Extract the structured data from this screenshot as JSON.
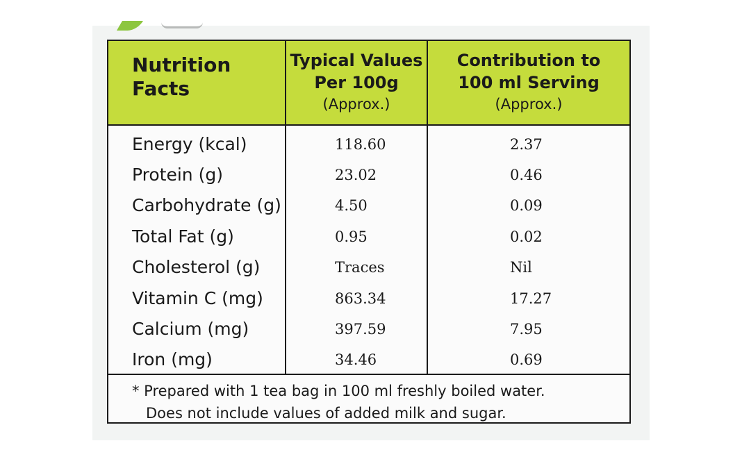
{
  "colors": {
    "header_bg": "#c5dc3c",
    "border": "#1a1a1a",
    "card_bg": "#f2f4f3",
    "leaf": "#8dc63f"
  },
  "header": {
    "col1_line1": "Nutrition",
    "col1_line2": "Facts",
    "col2_line1": "Typical Values",
    "col2_line2": "Per 100g",
    "col2_line3": "(Approx.)",
    "col3_line1": "Contribution to",
    "col3_line2": "100 ml Serving",
    "col3_line3": "(Approx.)"
  },
  "rows": [
    {
      "label": "Energy (kcal)",
      "per100g": "118.60",
      "serving": "2.37"
    },
    {
      "label": "Protein (g)",
      "per100g": "23.02",
      "serving": "0.46"
    },
    {
      "label": "Carbohydrate (g)",
      "per100g": "4.50",
      "serving": "0.09"
    },
    {
      "label": "Total Fat (g)",
      "per100g": "0.95",
      "serving": "0.02"
    },
    {
      "label": "Cholesterol (g)",
      "per100g": "Traces",
      "serving": "Nil"
    },
    {
      "label": "Vitamin C (mg)",
      "per100g": "863.34",
      "serving": "17.27"
    },
    {
      "label": "Calcium (mg)",
      "per100g": "397.59",
      "serving": "7.95"
    },
    {
      "label": "Iron (mg)",
      "per100g": "34.46",
      "serving": "0.69"
    }
  ],
  "footnote": {
    "line1": "* Prepared with 1 tea bag in 100 ml freshly boiled water.",
    "line2": "Does not include values of added milk and sugar."
  }
}
